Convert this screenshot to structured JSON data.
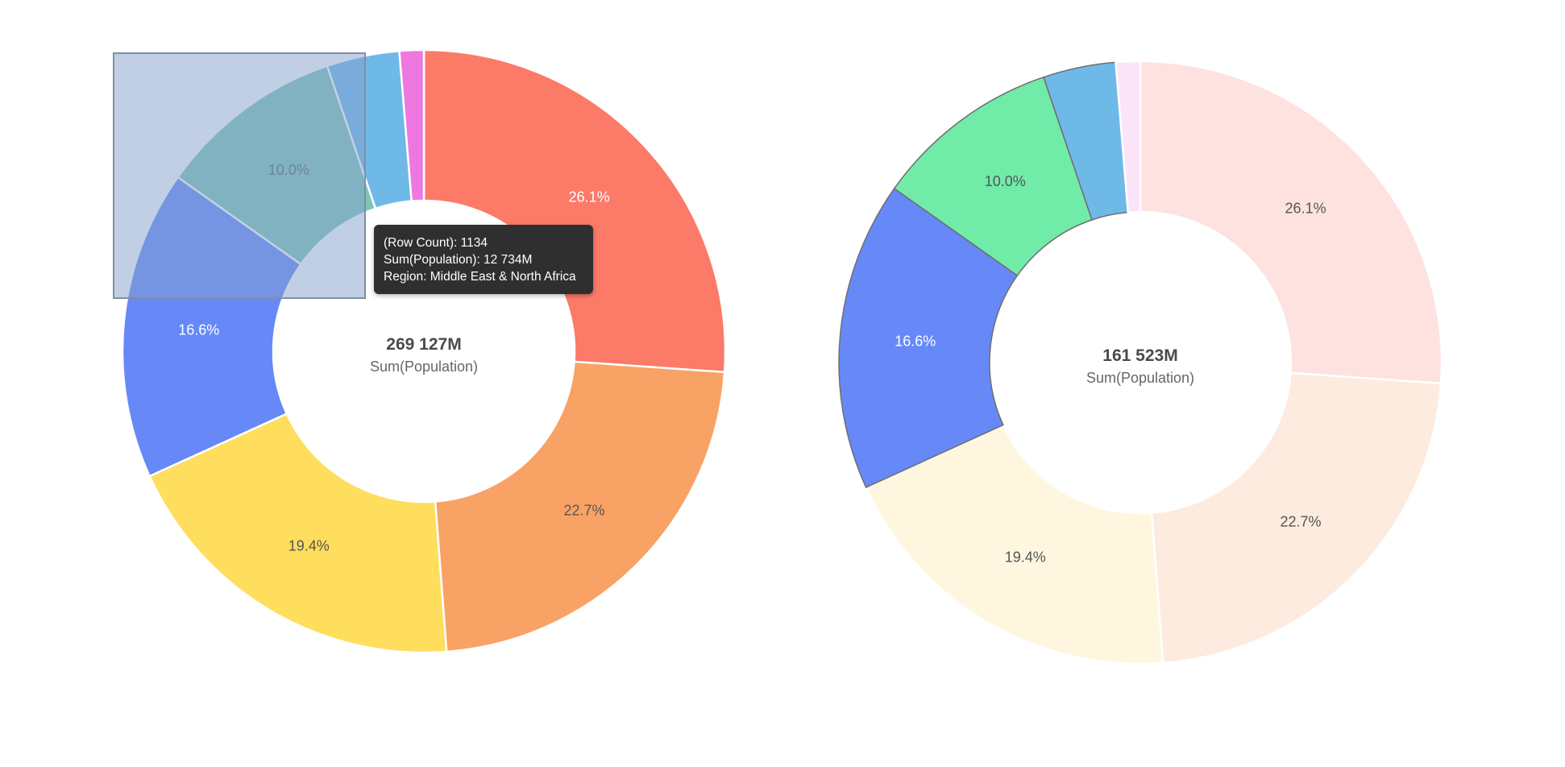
{
  "chart_data": [
    {
      "type": "pie",
      "variant": "donut",
      "title": "",
      "center_value": "269 127M",
      "center_label": "Sum(Population)",
      "slices": [
        {
          "value": 26.1,
          "label": "26.1%",
          "color": "#fc7a68",
          "label_color": "#ffffff"
        },
        {
          "value": 22.7,
          "label": "22.7%",
          "color": "#f9a265",
          "label_color": "#555555"
        },
        {
          "value": 19.4,
          "label": "19.4%",
          "color": "#ffdd5d",
          "label_color": "#555555"
        },
        {
          "value": 16.6,
          "label": "16.6%",
          "color": "#6689f7",
          "label_color": "#ffffff"
        },
        {
          "value": 10.0,
          "label": "10.0%",
          "color": "#7ec4b8",
          "label_color": "#5a6a6a"
        },
        {
          "value": 3.9,
          "label": "",
          "color": "#6fb9e8",
          "label_color": "#ffffff"
        },
        {
          "value": 1.3,
          "label": "",
          "color": "#ee77e0",
          "label_color": "#ffffff"
        }
      ],
      "selection_box": true,
      "tooltip": {
        "lines": [
          "(Row Count): 1134",
          "Sum(Population): 12 734M",
          "Region: Middle East & North Africa"
        ]
      }
    },
    {
      "type": "pie",
      "variant": "donut",
      "title": "",
      "center_value": "161 523M",
      "center_label": "Sum(Population)",
      "slices": [
        {
          "value": 26.1,
          "label": "26.1%",
          "color": "#fde2df",
          "label_color": "#555555",
          "highlighted": false
        },
        {
          "value": 22.7,
          "label": "22.7%",
          "color": "#fdebdf",
          "label_color": "#555555",
          "highlighted": false
        },
        {
          "value": 19.4,
          "label": "19.4%",
          "color": "#fff6df",
          "label_color": "#555555",
          "highlighted": false
        },
        {
          "value": 16.6,
          "label": "16.6%",
          "color": "#6689f7",
          "label_color": "#ffffff",
          "highlighted": true
        },
        {
          "value": 10.0,
          "label": "10.0%",
          "color": "#71eba8",
          "label_color": "#555555",
          "highlighted": true
        },
        {
          "value": 3.9,
          "label": "",
          "color": "#6fb9e8",
          "label_color": "#ffffff",
          "highlighted": true
        },
        {
          "value": 1.3,
          "label": "",
          "color": "#fce4f8",
          "label_color": "#ffffff",
          "highlighted": false
        }
      ]
    }
  ]
}
